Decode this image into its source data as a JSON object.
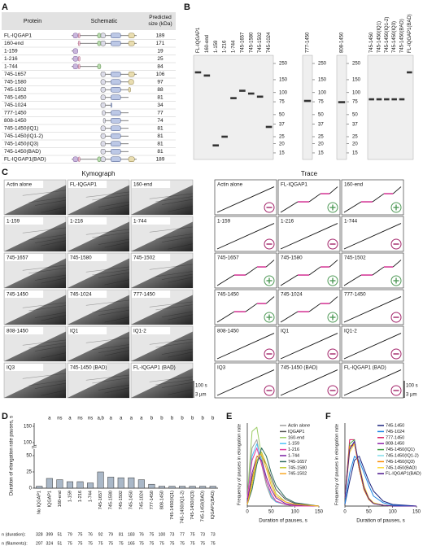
{
  "panel_labels": [
    "A",
    "B",
    "C",
    "D",
    "E",
    "F"
  ],
  "table": {
    "headers": [
      "Protein",
      "Schematic",
      "Predicted size (kDa)"
    ],
    "rows": [
      [
        "FL-IQGAP1",
        189
      ],
      [
        "160-end",
        171
      ],
      [
        "1-159",
        19
      ],
      [
        "1-216",
        25
      ],
      [
        "1-744",
        84
      ],
      [
        "745-1657",
        106
      ],
      [
        "745-1580",
        97
      ],
      [
        "745-1502",
        88
      ],
      [
        "745-1450",
        81
      ],
      [
        "745-1024",
        34
      ],
      [
        "777-1450",
        77
      ],
      [
        "808-1450",
        74
      ],
      [
        "745-1450(IQ1)",
        81
      ],
      [
        "745-1450(IQ1-2)",
        81
      ],
      [
        "745-1450(IQ3)",
        81
      ],
      [
        "745-1450(BAD)",
        81
      ],
      [
        "FL-IQGAP1(BAD)",
        189
      ]
    ]
  },
  "gels": {
    "markers": [
      250,
      150,
      100,
      75,
      50,
      37,
      25,
      20,
      15
    ],
    "panels": [
      {
        "lanes": [
          "FL-IQGAP1",
          "160-end",
          "1-159",
          "1-216",
          "1-744",
          "745-1657",
          "745-1580",
          "745-1502",
          "745-1024"
        ],
        "show_markers": true
      },
      {
        "lanes": [
          "777-1450"
        ],
        "show_markers": true
      },
      {
        "lanes": [
          "808-1450"
        ],
        "show_markers": true
      },
      {
        "lanes": [
          "745-1450",
          "745-1450(IQ1)",
          "745-1450(IQ1-2)",
          "745-1450(IQ3)",
          "745-1450(BAD)",
          "FL-IQGAP1(BAD)"
        ],
        "show_markers": false
      }
    ]
  },
  "kymographs": {
    "kymo_title": "Kymograph",
    "trace_title": "Trace",
    "scale_time": "100 s",
    "scale_length": "3 µm",
    "panels": [
      {
        "label": "Actin alone",
        "pauses": false
      },
      {
        "label": "FL-IQGAP1",
        "pauses": true
      },
      {
        "label": "160-end",
        "pauses": true
      },
      {
        "label": "1-159",
        "pauses": false
      },
      {
        "label": "1-216",
        "pauses": false
      },
      {
        "label": "1-744",
        "pauses": false
      },
      {
        "label": "745-1657",
        "pauses": true
      },
      {
        "label": "745-1580",
        "pauses": true
      },
      {
        "label": "745-1502",
        "pauses": true
      },
      {
        "label": "745-1450",
        "pauses": true
      },
      {
        "label": "745-1024",
        "pauses": true
      },
      {
        "label": "777-1450",
        "pauses": false
      },
      {
        "label": "808-1450",
        "pauses": false
      },
      {
        "label": "IQ1",
        "pauses": false
      },
      {
        "label": "IQ1-2",
        "pauses": false
      },
      {
        "label": "IQ3",
        "pauses": false
      },
      {
        "label": "745-1450 (BAD)",
        "pauses": false
      },
      {
        "label": "FL-IQGAP1 (BAD)",
        "pauses": false
      }
    ]
  },
  "chart_data": [
    {
      "type": "bar",
      "y_label": "Duration of elongation rate pauses, s",
      "color": "#aab8c8",
      "categories": [
        "No IQGAP1",
        "IQGAP1",
        "160-end",
        "1-159",
        "1-216",
        "1-744",
        "745-1657",
        "745-1580",
        "745-1502",
        "745-1450",
        "745-1024",
        "777-1450",
        "808-1450",
        "745-1450(IQ1)",
        "745-1450(IQ1-2)",
        "745-1450(IQ3)",
        "745-1450(BAD)",
        "IQGAP1(BAD)"
      ],
      "values": [
        3,
        15,
        13,
        10,
        10,
        8,
        25,
        17,
        16,
        16,
        13,
        6,
        3,
        3,
        3,
        3,
        3,
        3
      ],
      "significance": [
        null,
        "a",
        "ns",
        "a",
        "ns",
        "ns",
        "a,b",
        "a",
        "a",
        "a",
        "a",
        "b",
        "b",
        "b",
        "b",
        "b",
        "b",
        "b"
      ],
      "ylim": [
        0,
        60
      ],
      "yticks": [
        0,
        25,
        50
      ],
      "ylim_upper": [
        90,
        160
      ],
      "yticks_upper": [
        100,
        150
      ],
      "n_duration_label": "n (duration):",
      "n_duration": [
        328,
        399,
        51,
        79,
        75,
        76,
        92,
        79,
        81,
        183,
        76,
        75,
        100,
        73,
        77,
        75,
        73,
        73
      ],
      "n_filaments_label": "n (filaments):",
      "n_filaments": [
        297,
        324,
        51,
        75,
        75,
        75,
        75,
        75,
        75,
        165,
        75,
        75,
        75,
        75,
        75,
        75,
        75,
        75
      ]
    },
    {
      "type": "line",
      "x_label": "Duration of pauses, s",
      "y_label": "Frequency of pauses in elongation rate",
      "xlim": [
        0,
        150
      ],
      "xticks": [
        0,
        50,
        100,
        150
      ],
      "ylim": [
        0,
        1
      ],
      "x": [
        0,
        10,
        20,
        30,
        40,
        50,
        60,
        80,
        100,
        150
      ],
      "series": [
        {
          "name": "Actin alone",
          "color": "#9e9e9e",
          "values": [
            0.1,
            0.7,
            0.8,
            0.5,
            0.25,
            0.1,
            0.05,
            0.02,
            0.01,
            0
          ]
        },
        {
          "name": "IQGAP1",
          "color": "#555555",
          "values": [
            0.05,
            0.35,
            0.55,
            0.6,
            0.5,
            0.35,
            0.2,
            0.08,
            0.03,
            0
          ]
        },
        {
          "name": "160-end",
          "color": "#9ccc65",
          "values": [
            0.1,
            0.9,
            0.95,
            0.6,
            0.3,
            0.12,
            0.05,
            0.02,
            0.01,
            0
          ]
        },
        {
          "name": "1-159",
          "color": "#4fc3f7",
          "values": [
            0.1,
            0.6,
            0.75,
            0.55,
            0.3,
            0.12,
            0.05,
            0.02,
            0,
            0
          ]
        },
        {
          "name": "1-216",
          "color": "#e040a0",
          "values": [
            0.1,
            0.55,
            0.7,
            0.5,
            0.3,
            0.15,
            0.06,
            0.02,
            0,
            0
          ]
        },
        {
          "name": "1-744",
          "color": "#7b1fa2",
          "values": [
            0.05,
            0.4,
            0.6,
            0.55,
            0.35,
            0.2,
            0.1,
            0.03,
            0.01,
            0
          ]
        },
        {
          "name": "745-1657",
          "color": "#2e6b5e",
          "values": [
            0.02,
            0.2,
            0.5,
            0.7,
            0.6,
            0.4,
            0.25,
            0.1,
            0.04,
            0
          ]
        },
        {
          "name": "745-1580",
          "color": "#c0ca33",
          "values": [
            0.02,
            0.25,
            0.55,
            0.65,
            0.5,
            0.3,
            0.15,
            0.05,
            0.02,
            0
          ]
        },
        {
          "name": "745-1502",
          "color": "#f9a825",
          "values": [
            0.02,
            0.3,
            0.6,
            0.62,
            0.45,
            0.25,
            0.12,
            0.05,
            0.02,
            0
          ]
        }
      ]
    },
    {
      "type": "line",
      "x_label": "Duration of pauses, s",
      "y_label": "Frequency of pauses in elongation rate",
      "xlim": [
        0,
        150
      ],
      "xticks": [
        0,
        50,
        100,
        150
      ],
      "ylim": [
        0,
        1
      ],
      "x": [
        0,
        10,
        20,
        30,
        40,
        50,
        60,
        80,
        100,
        150
      ],
      "series": [
        {
          "name": "745-1450",
          "color": "#1a237e",
          "values": [
            0.02,
            0.3,
            0.55,
            0.6,
            0.45,
            0.3,
            0.18,
            0.06,
            0.02,
            0
          ]
        },
        {
          "name": "745-1024",
          "color": "#1e88e5",
          "values": [
            0.03,
            0.4,
            0.6,
            0.55,
            0.4,
            0.25,
            0.12,
            0.04,
            0.01,
            0
          ]
        },
        {
          "name": "777-1450",
          "color": "#d81b60",
          "values": [
            0.1,
            0.8,
            0.8,
            0.45,
            0.2,
            0.08,
            0.03,
            0.01,
            0,
            0
          ]
        },
        {
          "name": "808-1450",
          "color": "#8e24aa",
          "values": [
            0.1,
            0.7,
            0.75,
            0.45,
            0.2,
            0.08,
            0.03,
            0.01,
            0,
            0
          ]
        },
        {
          "name": "745-1450(IQ1)",
          "color": "#43a047",
          "values": [
            0.1,
            0.75,
            0.8,
            0.45,
            0.2,
            0.08,
            0.03,
            0.01,
            0,
            0
          ]
        },
        {
          "name": "745-1450(IQ1-2)",
          "color": "#80deea",
          "values": [
            0.1,
            0.7,
            0.78,
            0.5,
            0.22,
            0.08,
            0.03,
            0.01,
            0,
            0
          ]
        },
        {
          "name": "745-1450(IQ3)",
          "color": "#fb8c00",
          "values": [
            0.1,
            0.72,
            0.75,
            0.45,
            0.2,
            0.08,
            0.03,
            0.01,
            0,
            0
          ]
        },
        {
          "name": "745-1450(BAD)",
          "color": "#fdd835",
          "values": [
            0.1,
            0.65,
            0.75,
            0.5,
            0.25,
            0.1,
            0.04,
            0.01,
            0,
            0
          ]
        },
        {
          "name": "FL-IQGAP1(BAD)",
          "color": "#4a148c",
          "values": [
            0.1,
            0.68,
            0.78,
            0.48,
            0.22,
            0.09,
            0.03,
            0.01,
            0,
            0
          ]
        }
      ]
    }
  ]
}
